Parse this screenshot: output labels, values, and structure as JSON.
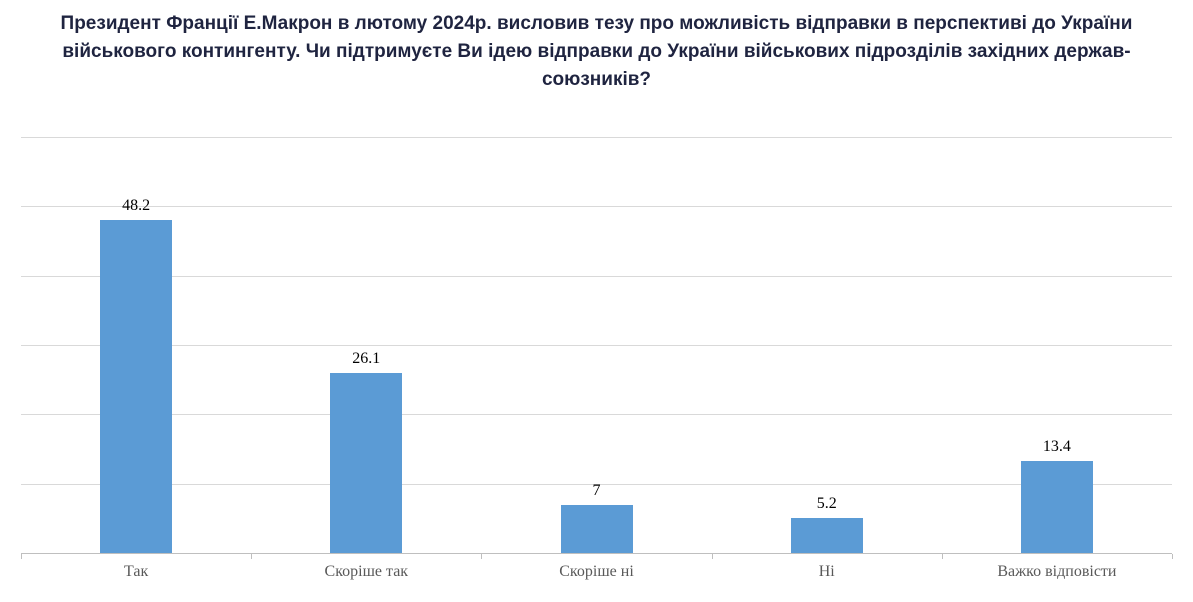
{
  "title": "Президент Франції Е.Макрон в лютому 2024р. висловив тезу про можливість відправки в перспективі до України військового контингенту. Чи підтримуєте Ви ідею відправки до України військових підрозділів західних держав-союзників?",
  "colors": {
    "bar": "#5b9bd5",
    "title_text": "#1f2440",
    "gridline": "#d9d9d9",
    "axis": "#bfbfbf",
    "value_text": "#000000",
    "category_text": "#595959"
  },
  "chart_data": {
    "type": "bar",
    "categories": [
      "Так",
      "Скоріше так",
      "Скоріше ні",
      "Ні",
      "Важко відповісти"
    ],
    "values": [
      48.2,
      26.1,
      7,
      5.2,
      13.4
    ],
    "value_labels": [
      "48.2",
      "26.1",
      "7",
      "5.2",
      "13.4"
    ],
    "title": "Президент Франції Е.Макрон в лютому 2024р. висловив тезу про можливість відправки в перспективі до України військового контингенту. Чи підтримуєте Ви ідею відправки до України військових підрозділів західних держав-союзників?",
    "xlabel": "",
    "ylabel": "",
    "ylim": [
      0,
      60
    ],
    "gridline_step": 10,
    "grid": true,
    "legend": "none",
    "y_tick_labels_visible": false
  }
}
